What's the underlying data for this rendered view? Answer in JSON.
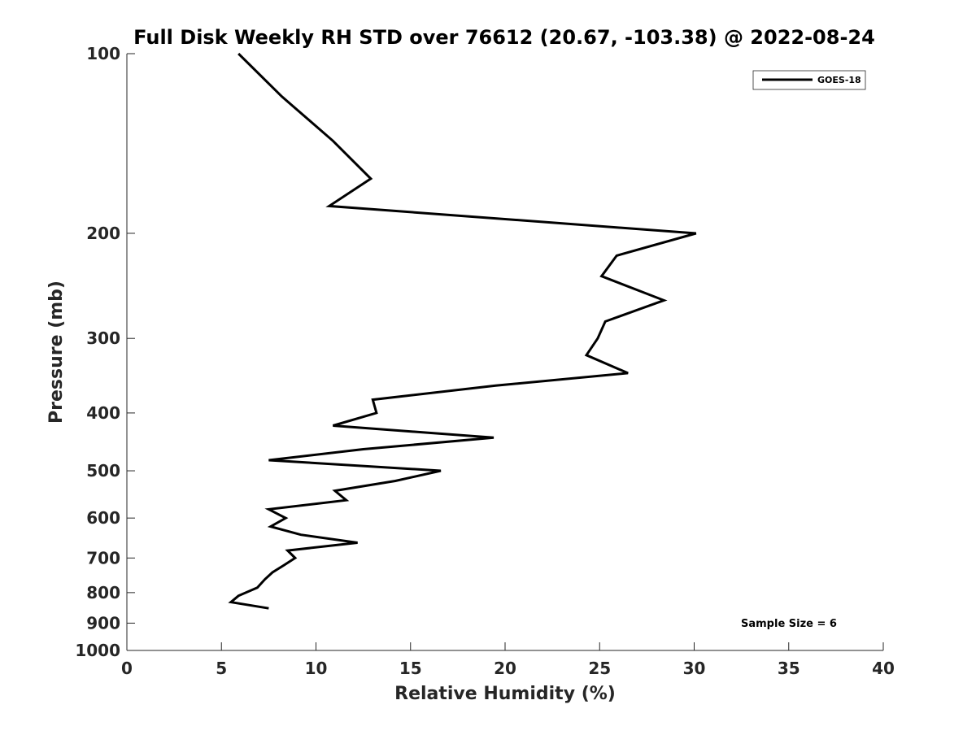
{
  "chart_data": {
    "type": "line",
    "title": "Full Disk Weekly RH STD over 76612 (20.67, -103.38) @ 2022-08-24",
    "xlabel": "Relative Humidity (%)",
    "ylabel": "Pressure (mb)",
    "xlim": [
      0,
      40
    ],
    "ylim": [
      100,
      1000
    ],
    "y_scale": "log",
    "y_reversed": true,
    "x_ticks": [
      0,
      5,
      10,
      15,
      20,
      25,
      30,
      35,
      40
    ],
    "x_tick_labels": [
      "0",
      "5",
      "10",
      "15",
      "20",
      "25",
      "30",
      "35",
      "40"
    ],
    "y_ticks": [
      100,
      200,
      300,
      400,
      500,
      600,
      700,
      800,
      900,
      1000
    ],
    "y_tick_labels": [
      "100",
      "200",
      "300",
      "400",
      "500",
      "600",
      "700",
      "800",
      "900",
      "1000"
    ],
    "grid": false,
    "legend_position": "top-right",
    "series": [
      {
        "name": "GOES-18",
        "color": "#000000",
        "points": [
          {
            "x": 5.9,
            "y": 100
          },
          {
            "x": 8.2,
            "y": 118
          },
          {
            "x": 10.9,
            "y": 140
          },
          {
            "x": 12.9,
            "y": 162
          },
          {
            "x": 10.7,
            "y": 180
          },
          {
            "x": 30.1,
            "y": 200
          },
          {
            "x": 25.9,
            "y": 218
          },
          {
            "x": 25.1,
            "y": 236
          },
          {
            "x": 28.4,
            "y": 259
          },
          {
            "x": 25.3,
            "y": 281
          },
          {
            "x": 24.9,
            "y": 300
          },
          {
            "x": 24.3,
            "y": 320
          },
          {
            "x": 26.5,
            "y": 343
          },
          {
            "x": 19.5,
            "y": 360
          },
          {
            "x": 13.0,
            "y": 380
          },
          {
            "x": 13.2,
            "y": 400
          },
          {
            "x": 10.9,
            "y": 420
          },
          {
            "x": 19.4,
            "y": 440
          },
          {
            "x": 12.5,
            "y": 460
          },
          {
            "x": 7.5,
            "y": 480
          },
          {
            "x": 16.6,
            "y": 500
          },
          {
            "x": 14.2,
            "y": 520
          },
          {
            "x": 11.0,
            "y": 540
          },
          {
            "x": 11.6,
            "y": 560
          },
          {
            "x": 7.5,
            "y": 580
          },
          {
            "x": 8.4,
            "y": 600
          },
          {
            "x": 7.6,
            "y": 620
          },
          {
            "x": 9.2,
            "y": 640
          },
          {
            "x": 12.2,
            "y": 660
          },
          {
            "x": 8.5,
            "y": 680
          },
          {
            "x": 8.9,
            "y": 700
          },
          {
            "x": 8.3,
            "y": 720
          },
          {
            "x": 7.7,
            "y": 740
          },
          {
            "x": 7.3,
            "y": 760
          },
          {
            "x": 6.9,
            "y": 785
          },
          {
            "x": 5.9,
            "y": 810
          },
          {
            "x": 5.5,
            "y": 830
          },
          {
            "x": 7.5,
            "y": 850
          }
        ]
      }
    ],
    "annotations": [
      {
        "text": "Sample Size = 6",
        "position": "bottom-right"
      }
    ]
  }
}
